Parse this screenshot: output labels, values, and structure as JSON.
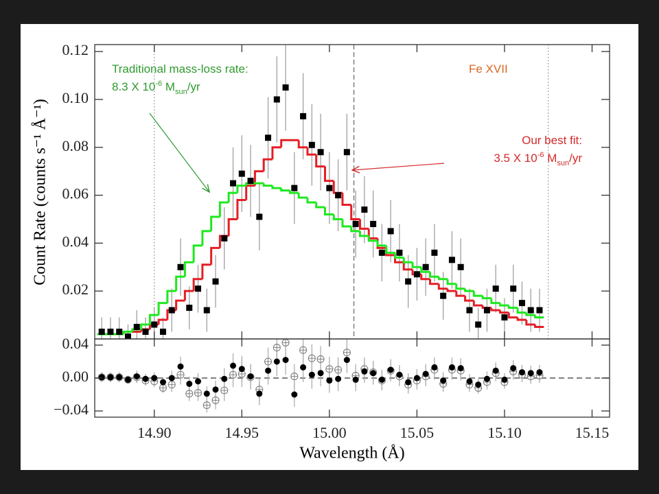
{
  "chart_data": [
    {
      "type": "step",
      "ylabel": "Count Rate (counts s⁻¹ Å⁻¹)",
      "x": [
        14.87,
        14.875,
        14.88,
        14.885,
        14.89,
        14.895,
        14.9,
        14.905,
        14.91,
        14.915,
        14.92,
        14.925,
        14.93,
        14.935,
        14.94,
        14.945,
        14.95,
        14.955,
        14.96,
        14.965,
        14.97,
        14.975,
        14.98,
        14.985,
        14.99,
        14.995,
        15,
        15.005,
        15.01,
        15.015,
        15.02,
        15.025,
        15.03,
        15.035,
        15.04,
        15.045,
        15.05,
        15.055,
        15.06,
        15.065,
        15.07,
        15.075,
        15.08,
        15.085,
        15.09,
        15.095,
        15.1,
        15.105,
        15.11,
        15.115,
        15.12
      ],
      "xlim": [
        14.866,
        15.16
      ],
      "xticks": [
        {
          "value": 14.9,
          "label": "14.90"
        },
        14.95,
        {
          "value": 15,
          "label": "15.00"
        },
        15.05,
        {
          "value": 15.1,
          "label": "15.10"
        },
        15.15
      ],
      "ylim": [
        0,
        0.1229
      ],
      "yticks": [
        0.02,
        0.04,
        0.06,
        0.08,
        {
          "value": 0.1,
          "label": "0.10"
        },
        0.12
      ],
      "series": [
        {
          "style": "points",
          "marker": "square",
          "color": "#000000",
          "error_color": "#a0a0a0",
          "values": [
            0.003,
            0.003,
            0.003,
            0.001,
            0.005,
            0.003,
            0.006,
            0.003,
            0.012,
            0.03,
            0.013,
            0.021,
            0.012,
            0.024,
            0.042,
            0.065,
            0.069,
            0.066,
            0.051,
            0.084,
            0.1,
            0.105,
            0.063,
            0.093,
            0.081,
            0.078,
            0.063,
            0.06,
            0.078,
            0.048,
            0.054,
            0.048,
            0.036,
            0.045,
            0.036,
            0.024,
            0.027,
            0.03,
            0.036,
            0.018,
            0.033,
            0.03,
            0.012,
            0.006,
            0.012,
            0.021,
            0.009,
            0.021,
            0.015,
            0.012,
            0.012
          ],
          "errors": [
            0.006,
            0.006,
            0.006,
            0.005,
            0.007,
            0.006,
            0.007,
            0.006,
            0.009,
            0.012,
            0.009,
            0.01,
            0.009,
            0.011,
            0.013,
            0.015,
            0.016,
            0.015,
            0.014,
            0.017,
            0.018,
            0.018,
            0.015,
            0.018,
            0.017,
            0.016,
            0.015,
            0.015,
            0.016,
            0.014,
            0.014,
            0.014,
            0.012,
            0.013,
            0.012,
            0.011,
            0.011,
            0.012,
            0.012,
            0.01,
            0.012,
            0.012,
            0.009,
            0.007,
            0.009,
            0.01,
            0.008,
            0.01,
            0.009,
            0.009,
            0.009
          ]
        },
        {
          "style": "step",
          "color": "#e41e26",
          "values": [
            0.002,
            0.002,
            0.002,
            0.003,
            0.003,
            0.004,
            0.006,
            0.008,
            0.012,
            0.016,
            0.02,
            0.025,
            0.031,
            0.038,
            0.043,
            0.05,
            0.058,
            0.064,
            0.07,
            0.075,
            0.08,
            0.083,
            0.083,
            0.08,
            0.077,
            0.072,
            0.066,
            0.061,
            0.056,
            0.05,
            0.046,
            0.042,
            0.038,
            0.035,
            0.032,
            0.029,
            0.027,
            0.025,
            0.023,
            0.021,
            0.02,
            0.018,
            0.016,
            0.014,
            0.013,
            0.012,
            0.011,
            0.009,
            0.008,
            0.006,
            0.005
          ]
        },
        {
          "style": "step",
          "color": "#1ee81e",
          "values": [
            0.002,
            0.002,
            0.002,
            0.003,
            0.004,
            0.006,
            0.01,
            0.015,
            0.02,
            0.026,
            0.032,
            0.039,
            0.045,
            0.051,
            0.057,
            0.061,
            0.064,
            0.065,
            0.065,
            0.064,
            0.063,
            0.062,
            0.061,
            0.059,
            0.057,
            0.055,
            0.052,
            0.05,
            0.047,
            0.045,
            0.043,
            0.041,
            0.039,
            0.036,
            0.034,
            0.032,
            0.03,
            0.028,
            0.026,
            0.025,
            0.023,
            0.021,
            0.02,
            0.018,
            0.017,
            0.015,
            0.014,
            0.013,
            0.011,
            0.01,
            0.009
          ]
        }
      ],
      "vlines": [
        {
          "x": 14.9,
          "style": "dotted"
        },
        {
          "x": 15.014,
          "style": "dashed"
        },
        {
          "x": 15.125,
          "style": "dotted"
        }
      ],
      "annotations": [
        {
          "color": "#2f9a2f",
          "lines": [
            [
              {
                "text": "Traditional mass-loss rate:"
              }
            ],
            [
              {
                "text": "8.3 X 10"
              },
              {
                "text": "-6",
                "script": "sup"
              },
              {
                "text": " M"
              },
              {
                "text": "sun",
                "script": "sub"
              },
              {
                "text": "/yr"
              }
            ]
          ]
        },
        {
          "color": "#d9661f",
          "lines": [
            [
              {
                "text": "Fe XVII"
              }
            ]
          ]
        },
        {
          "color": "#d42a2a",
          "lines": [
            [
              {
                "text": "Our best fit:"
              }
            ],
            [
              {
                "text": "3.5 X 10"
              },
              {
                "text": "-6",
                "script": "sup"
              },
              {
                "text": " M"
              },
              {
                "text": "sun",
                "script": "sub"
              },
              {
                "text": "/yr"
              }
            ]
          ]
        }
      ]
    },
    {
      "type": "residual",
      "xlabel": "Wavelength (Å)",
      "ylim": [
        -0.0475,
        0.0475
      ],
      "yticks": [
        {
          "value": -0.04,
          "label": "−0.04"
        },
        {
          "value": 0,
          "label": "0.00"
        },
        0.04
      ],
      "hline": 0,
      "series": [
        {
          "marker": "filled",
          "color": "#000000",
          "values": [
            0.001,
            0.001,
            0.001,
            -0.002,
            0.002,
            -0.001,
            0,
            -0.005,
            0,
            0.014,
            -0.007,
            -0.004,
            -0.019,
            -0.014,
            -0.001,
            0.015,
            0.011,
            0.002,
            -0.019,
            0.009,
            0.02,
            0.022,
            -0.02,
            0.013,
            0.004,
            0.006,
            -0.003,
            -0.001,
            0.022,
            -0.002,
            0.008,
            0.006,
            -0.002,
            0.01,
            0.004,
            -0.005,
            0,
            0.005,
            0.013,
            -0.003,
            0.013,
            0.012,
            -0.004,
            -0.008,
            -0.001,
            0.009,
            -0.002,
            0.012,
            0.007,
            0.006,
            0.007
          ]
        },
        {
          "marker": "open",
          "color": "#808080",
          "values": [
            0.001,
            0.001,
            0.001,
            -0.002,
            0.001,
            -0.003,
            -0.004,
            -0.012,
            -0.008,
            0.004,
            -0.019,
            -0.018,
            -0.033,
            -0.027,
            -0.015,
            0.004,
            0.005,
            0.001,
            -0.014,
            0.02,
            0.037,
            0.043,
            0.002,
            0.034,
            0.024,
            0.023,
            0.011,
            0.01,
            0.031,
            0.003,
            0.011,
            0.007,
            -0.003,
            0.009,
            0.002,
            -0.008,
            -0.003,
            0.002,
            0.01,
            -0.007,
            0.01,
            0.009,
            -0.008,
            -0.012,
            -0.005,
            0.006,
            -0.005,
            0.008,
            0.004,
            0.002,
            0.003
          ]
        }
      ]
    }
  ]
}
